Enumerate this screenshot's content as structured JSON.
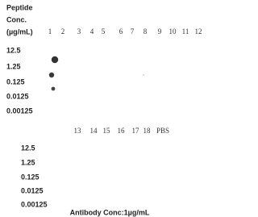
{
  "header": {
    "lines": [
      "Peptide",
      "Conc.",
      "(µg/mL)"
    ]
  },
  "top_block": {
    "columns": [
      "1",
      "2",
      "3",
      "4",
      "5",
      "6",
      "7",
      "8",
      "9",
      "10",
      "11",
      "12"
    ],
    "rows": [
      "12.5",
      "1.25",
      "0.125",
      "0.0125",
      "0.00125"
    ]
  },
  "bottom_block": {
    "columns": [
      "13",
      "14",
      "15",
      "16",
      "17",
      "18",
      "PBS"
    ],
    "rows": [
      "12.5",
      "1.25",
      "0.125",
      "0.0125",
      "0.00125"
    ]
  },
  "caption": "Antibody Conc:1µg/mL"
}
